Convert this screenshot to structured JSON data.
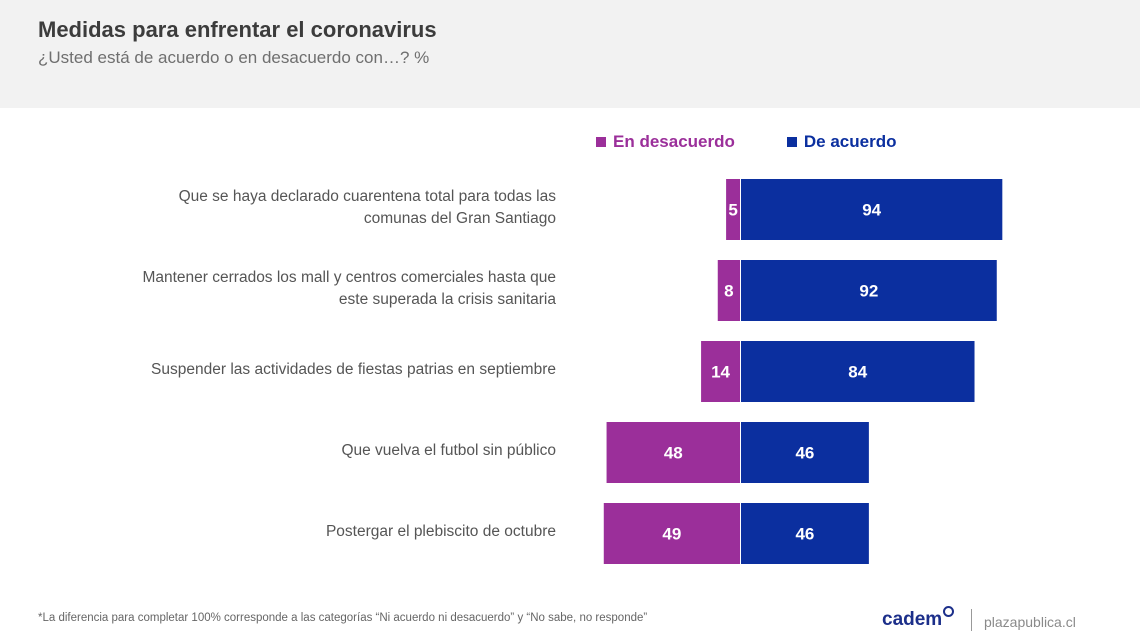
{
  "header": {
    "title": "Medidas para enfrentar el coronavirus",
    "subtitle": "¿Usted está de acuerdo o en desacuerdo con…? %"
  },
  "chart_data": {
    "type": "bar",
    "orientation": "horizontal-diverging",
    "title": "Medidas para enfrentar el coronavirus",
    "subtitle": "¿Usted está de acuerdo o en desacuerdo con…? %",
    "categories": [
      "Que se haya declarado cuarentena total para todas las comunas del Gran Santiago",
      "Mantener cerrados los mall y centros comerciales hasta que este superada la crisis sanitaria",
      "Suspender las actividades de fiestas patrias en septiembre",
      "Que vuelva el futbol sin público",
      "Postergar el plebiscito de octubre"
    ],
    "category_lines": [
      [
        "Que se haya declarado cuarentena total para todas las",
        "comunas del Gran Santiago"
      ],
      [
        "Mantener cerrados los mall y centros comerciales hasta que",
        "este superada la crisis sanitaria"
      ],
      [
        "Suspender las actividades de fiestas patrias en septiembre"
      ],
      [
        "Que vuelva el futbol sin público"
      ],
      [
        "Postergar el plebiscito de octubre"
      ]
    ],
    "series": [
      {
        "name": "En desacuerdo",
        "color": "#9b2f9a",
        "values": [
          5,
          8,
          14,
          48,
          49
        ]
      },
      {
        "name": "De acuerdo",
        "color": "#0b2f9f",
        "values": [
          94,
          92,
          84,
          46,
          46
        ]
      }
    ],
    "legend_position": "top",
    "grid": false,
    "xlim": [
      -100,
      100
    ]
  },
  "footer": {
    "note": "*La diferencia para completar 100% corresponde a las categorías “Ni acuerdo ni desacuerdo” y “No sabe, no responde”",
    "brand": "cadem",
    "source": "plazapublica.cl"
  }
}
